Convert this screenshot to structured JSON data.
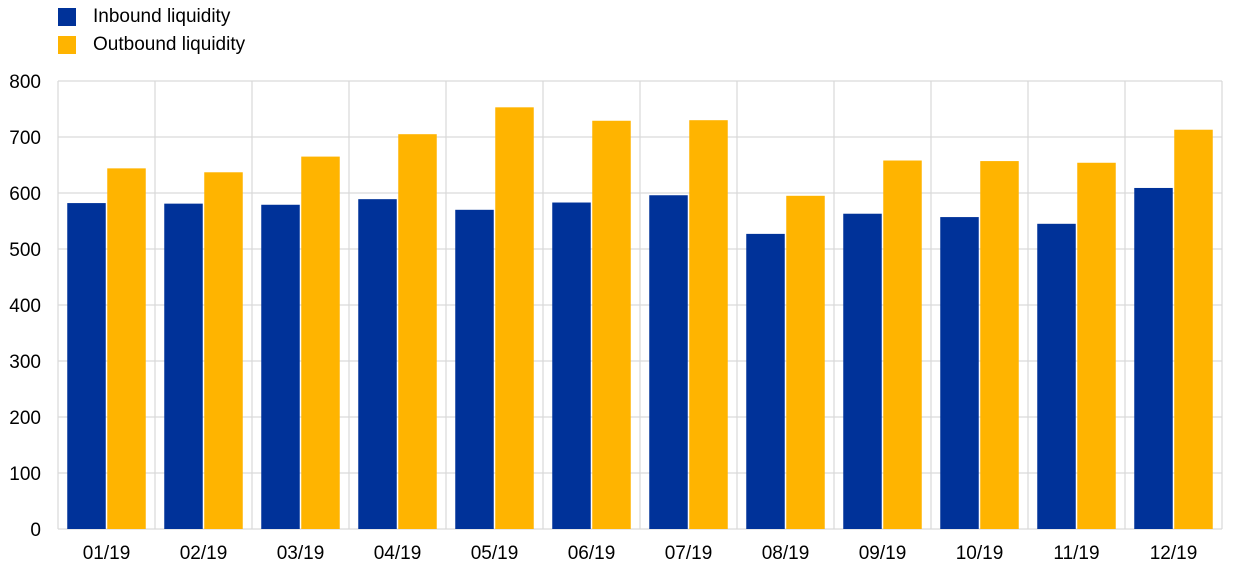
{
  "chart_data": {
    "type": "bar",
    "title": "",
    "xlabel": "",
    "ylabel": "",
    "categories": [
      "01/19",
      "02/19",
      "03/19",
      "04/19",
      "05/19",
      "06/19",
      "07/19",
      "08/19",
      "09/19",
      "10/19",
      "11/19",
      "12/19"
    ],
    "series": [
      {
        "name": "Inbound liquidity",
        "color": "#003299",
        "values": [
          582,
          581,
          579,
          589,
          570,
          583,
          596,
          527,
          563,
          557,
          545,
          609
        ]
      },
      {
        "name": "Outbound liquidity",
        "color": "#FFB400",
        "values": [
          644,
          637,
          665,
          705,
          753,
          729,
          730,
          595,
          658,
          657,
          654,
          713
        ]
      }
    ],
    "ylim": [
      0,
      800
    ],
    "yticks": [
      0,
      100,
      200,
      300,
      400,
      500,
      600,
      700,
      800
    ],
    "grid": true,
    "legend_position": "top-left"
  }
}
